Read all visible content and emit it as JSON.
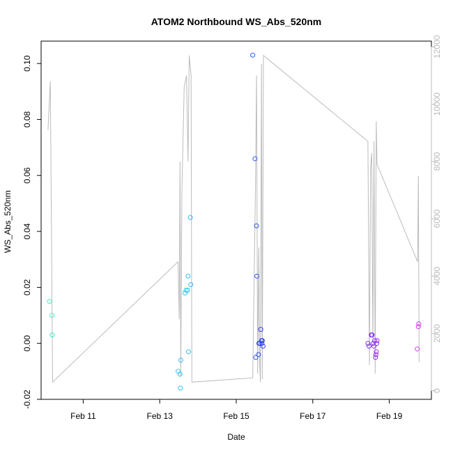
{
  "chart_data": {
    "type": "scatter",
    "title": "ATOM2 Northbound WS_Abs_520nm",
    "xlabel": "Date",
    "ylabel": "WS_Abs_520nm",
    "x_ticks": [
      {
        "label": "Feb 11",
        "day": 11
      },
      {
        "label": "Feb 13",
        "day": 13
      },
      {
        "label": "Feb 15",
        "day": 15
      },
      {
        "label": "Feb 17",
        "day": 17
      },
      {
        "label": "Feb 19",
        "day": 19
      }
    ],
    "xlim": [
      9.9,
      20.1
    ],
    "ylim": [
      -0.02,
      0.108
    ],
    "y_ticks": [
      "-0.02",
      "0.00",
      "0.02",
      "0.04",
      "0.06",
      "0.08",
      "0.10"
    ],
    "y2lim": [
      -300,
      12200
    ],
    "y2_ticks": [
      "0",
      "2000",
      "4000",
      "6000",
      "8000",
      "10000",
      "12000"
    ],
    "grid": false,
    "line_color": "#bbbbbb",
    "points": [
      {
        "day": 10.12,
        "value": 0.015,
        "color": "#3dfcb9"
      },
      {
        "day": 10.18,
        "value": 0.01,
        "color": "#3df5c8"
      },
      {
        "day": 10.19,
        "value": 0.003,
        "color": "#3aeec8"
      },
      {
        "day": 13.48,
        "value": -0.01,
        "color": "#33c8f0"
      },
      {
        "day": 13.53,
        "value": -0.011,
        "color": "#33c4f0"
      },
      {
        "day": 13.54,
        "value": -0.016,
        "color": "#33c0f2"
      },
      {
        "day": 13.55,
        "value": -0.006,
        "color": "#33bcf2"
      },
      {
        "day": 13.66,
        "value": 0.018,
        "color": "#33c6f0"
      },
      {
        "day": 13.69,
        "value": 0.019,
        "color": "#33c4f0"
      },
      {
        "day": 13.73,
        "value": 0.019,
        "color": "#33c2f0"
      },
      {
        "day": 13.74,
        "value": 0.024,
        "color": "#33c0f0"
      },
      {
        "day": 13.75,
        "value": -0.003,
        "color": "#33bef0"
      },
      {
        "day": 13.8,
        "value": 0.045,
        "color": "#33b8f0"
      },
      {
        "day": 13.81,
        "value": 0.021,
        "color": "#33b6f0"
      },
      {
        "day": 15.43,
        "value": 0.103,
        "color": "#2b62f0"
      },
      {
        "day": 15.49,
        "value": 0.066,
        "color": "#2b5cf0"
      },
      {
        "day": 15.53,
        "value": 0.042,
        "color": "#2b58f0"
      },
      {
        "day": 15.54,
        "value": 0.024,
        "color": "#2b55f0"
      },
      {
        "day": 15.51,
        "value": -0.005,
        "color": "#2b4cf0"
      },
      {
        "day": 15.58,
        "value": -0.004,
        "color": "#2b48f0"
      },
      {
        "day": 15.59,
        "value": 0.0,
        "color": "#2b46f0"
      },
      {
        "day": 15.62,
        "value": 0.0,
        "color": "#2b42f0"
      },
      {
        "day": 15.64,
        "value": 0.005,
        "color": "#2b40f0"
      },
      {
        "day": 15.66,
        "value": 0.001,
        "color": "#2b3ef0"
      },
      {
        "day": 15.67,
        "value": 0.0,
        "color": "#2b3cf0"
      },
      {
        "day": 15.68,
        "value": 0.001,
        "color": "#2b3af0"
      },
      {
        "day": 15.7,
        "value": -0.001,
        "color": "#2b38f0"
      },
      {
        "day": 18.44,
        "value": 0.0,
        "color": "#7a2bf0"
      },
      {
        "day": 18.47,
        "value": -0.001,
        "color": "#7d2bf0"
      },
      {
        "day": 18.53,
        "value": 0.003,
        "color": "#802bf0"
      },
      {
        "day": 18.55,
        "value": 0.003,
        "color": "#832bf0"
      },
      {
        "day": 18.58,
        "value": 0.0,
        "color": "#862bf0"
      },
      {
        "day": 18.6,
        "value": -0.001,
        "color": "#892bf0"
      },
      {
        "day": 18.62,
        "value": 0.001,
        "color": "#8c2bf0"
      },
      {
        "day": 18.64,
        "value": -0.005,
        "color": "#8f2bf0"
      },
      {
        "day": 18.65,
        "value": -0.004,
        "color": "#922bf0"
      },
      {
        "day": 18.67,
        "value": 0.0,
        "color": "#952bf0"
      },
      {
        "day": 18.68,
        "value": 0.001,
        "color": "#982bf0"
      },
      {
        "day": 18.66,
        "value": -0.003,
        "color": "#9a2bf0"
      },
      {
        "day": 19.73,
        "value": -0.002,
        "color": "#d23de8"
      },
      {
        "day": 19.76,
        "value": 0.006,
        "color": "#d63de8"
      },
      {
        "day": 19.77,
        "value": 0.007,
        "color": "#da3de8"
      }
    ],
    "line": [
      {
        "day": 10.08,
        "value": 9100
      },
      {
        "day": 10.14,
        "value": 10800
      },
      {
        "day": 10.2,
        "value": 300
      },
      {
        "day": 13.48,
        "value": 4500
      },
      {
        "day": 13.51,
        "value": 2500
      },
      {
        "day": 13.53,
        "value": 8000
      },
      {
        "day": 13.55,
        "value": 500
      },
      {
        "day": 13.58,
        "value": 7000
      },
      {
        "day": 13.64,
        "value": 10600
      },
      {
        "day": 13.7,
        "value": 11000
      },
      {
        "day": 13.74,
        "value": 8000
      },
      {
        "day": 13.77,
        "value": 11700
      },
      {
        "day": 13.82,
        "value": 11000
      },
      {
        "day": 13.84,
        "value": 300
      },
      {
        "day": 15.43,
        "value": 450
      },
      {
        "day": 15.5,
        "value": 7000
      },
      {
        "day": 15.53,
        "value": 11000
      },
      {
        "day": 15.56,
        "value": 600
      },
      {
        "day": 15.59,
        "value": 5000
      },
      {
        "day": 15.61,
        "value": 1000
      },
      {
        "day": 15.63,
        "value": 300
      },
      {
        "day": 15.66,
        "value": 11400
      },
      {
        "day": 15.68,
        "value": 400
      },
      {
        "day": 15.71,
        "value": 11700
      },
      {
        "day": 18.44,
        "value": 8700
      },
      {
        "day": 18.48,
        "value": 900
      },
      {
        "day": 18.51,
        "value": 7800
      },
      {
        "day": 18.54,
        "value": 8300
      },
      {
        "day": 18.57,
        "value": 1600
      },
      {
        "day": 18.6,
        "value": 8700
      },
      {
        "day": 18.63,
        "value": 600
      },
      {
        "day": 18.66,
        "value": 9400
      },
      {
        "day": 18.68,
        "value": 7900
      },
      {
        "day": 19.74,
        "value": 4500
      },
      {
        "day": 19.76,
        "value": 7500
      },
      {
        "day": 19.78,
        "value": 1000
      }
    ]
  }
}
